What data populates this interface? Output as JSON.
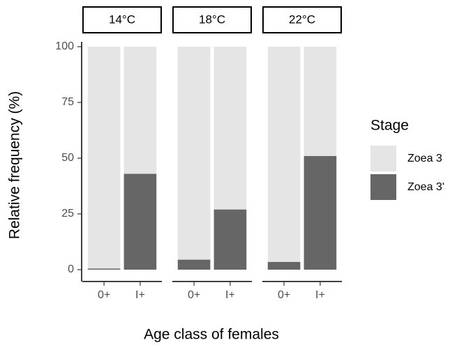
{
  "chart_data": {
    "type": "bar",
    "stacked": true,
    "xlabel": "Age class of females",
    "ylabel": "Relative frequency (%)",
    "legend_title": "Stage",
    "legend_position": "right",
    "ylim": [
      0,
      100
    ],
    "yticks": [
      0,
      25,
      50,
      75,
      100
    ],
    "facets": [
      {
        "title": "14°C",
        "categories": [
          "0+",
          "I+"
        ],
        "series": [
          {
            "name": "Zoea 3",
            "color": "#e5e5e5",
            "values": [
              99.5,
              57
            ]
          },
          {
            "name": "Zoea 3'",
            "color": "#666666",
            "values": [
              0.5,
              43
            ]
          }
        ]
      },
      {
        "title": "18°C",
        "categories": [
          "0+",
          "I+"
        ],
        "series": [
          {
            "name": "Zoea 3",
            "color": "#e5e5e5",
            "values": [
              95.5,
              73
            ]
          },
          {
            "name": "Zoea 3'",
            "color": "#666666",
            "values": [
              4.5,
              27
            ]
          }
        ]
      },
      {
        "title": "22°C",
        "categories": [
          "0+",
          "I+"
        ],
        "series": [
          {
            "name": "Zoea 3",
            "color": "#e5e5e5",
            "values": [
              96.5,
              49
            ]
          },
          {
            "name": "Zoea 3'",
            "color": "#666666",
            "values": [
              3.5,
              51
            ]
          }
        ]
      }
    ]
  }
}
